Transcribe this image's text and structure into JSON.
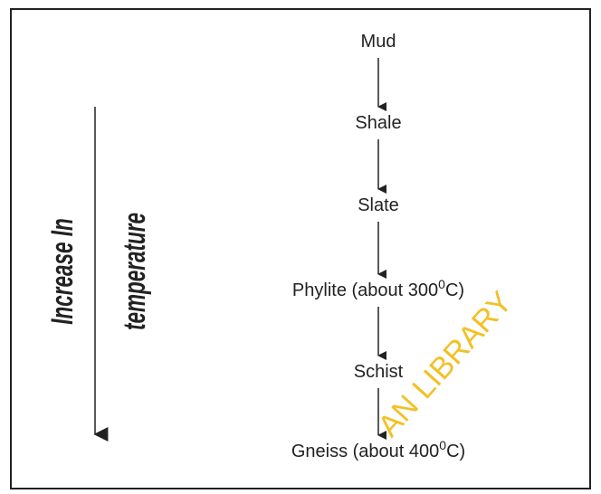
{
  "nodes": [
    {
      "text": "Mud"
    },
    {
      "text": "Shale"
    },
    {
      "text": "Slate"
    },
    {
      "text": "Phylite (about 300",
      "sup": "0",
      "after": "C)"
    },
    {
      "text": "Schist"
    },
    {
      "text": "Gneiss (about 400",
      "sup": "0",
      "after": "C)"
    }
  ],
  "side_labels": [
    "Increase In",
    "temperature"
  ],
  "watermark": "AN LIBRARY"
}
